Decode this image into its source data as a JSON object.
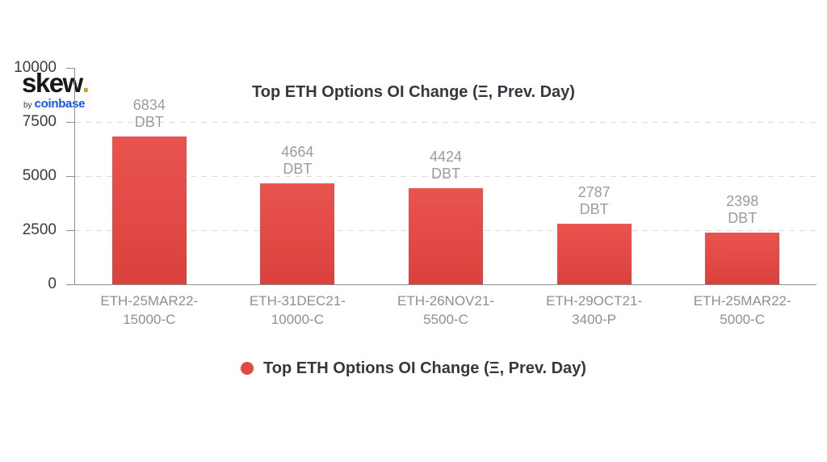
{
  "logo": {
    "brand": "skew",
    "dot": ".",
    "byline_prefix": "by",
    "byline_brand": "coinbase"
  },
  "title": "Top ETH Options OI Change (Ξ, Prev. Day)",
  "legend": {
    "label": "Top ETH Options OI Change (Ξ, Prev. Day)"
  },
  "colors": {
    "bar_top": "#e9544f",
    "bar_bottom": "#da413d",
    "legend_dot": "#e04944",
    "title_text": "#333940",
    "gray_label": "#9c9c9c",
    "axis_line": "#8f8f8f",
    "gridline": "#dcdcdc",
    "coinbase_blue": "#1652f0",
    "logo_gold": "#c7a02e"
  },
  "chart_data": {
    "type": "bar",
    "title": "Top ETH Options OI Change (Ξ, Prev. Day)",
    "categories": [
      "ETH-25MAR22-15000-C",
      "ETH-31DEC21-10000-C",
      "ETH-26NOV21-5500-C",
      "ETH-29OCT21-3400-P",
      "ETH-25MAR22-5000-C"
    ],
    "category_lines": [
      [
        "ETH-25MAR22-",
        "15000-C"
      ],
      [
        "ETH-31DEC21-",
        "10000-C"
      ],
      [
        "ETH-26NOV21-",
        "5500-C"
      ],
      [
        "ETH-29OCT21-",
        "3400-P"
      ],
      [
        "ETH-25MAR22-",
        "5000-C"
      ]
    ],
    "values": [
      6834,
      4664,
      4424,
      2787,
      2398
    ],
    "value_unit": "DBT",
    "xlabel": "",
    "ylabel": "",
    "ylim": [
      0,
      10000
    ],
    "yticks": [
      0,
      2500,
      5000,
      7500,
      10000
    ],
    "grid": "dashed-horizontal",
    "legend_position": "bottom"
  }
}
